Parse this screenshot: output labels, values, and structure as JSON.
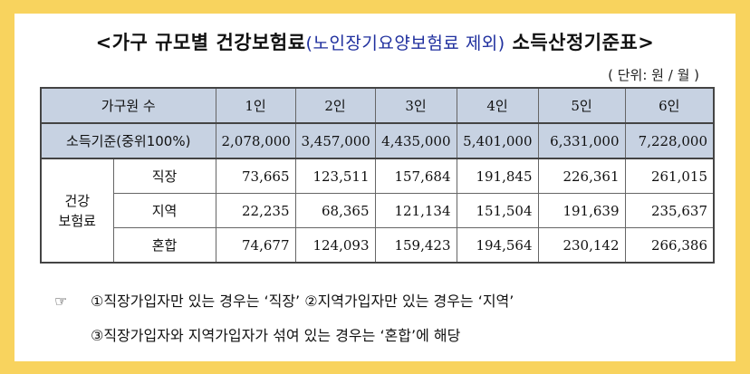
{
  "title": {
    "prefix": "<가구 규모별 건강보험료",
    "highlight": "(노인장기요양보험료 제외)",
    "suffix": " 소득산정기준표>"
  },
  "unit": "( 단위: 원 / 월 )",
  "table": {
    "header": [
      "가구원 수",
      "1인",
      "2인",
      "3인",
      "4인",
      "5인",
      "6인"
    ],
    "standard": {
      "label": "소득기준(중위100%)",
      "values": [
        "2,078,000",
        "3,457,000",
        "4,435,000",
        "5,401,000",
        "6,331,000",
        "7,228,000"
      ]
    },
    "group_label_line1": "건강",
    "group_label_line2": "보험료",
    "rows": [
      {
        "label": "직장",
        "values": [
          "73,665",
          "123,511",
          "157,684",
          "191,845",
          "226,361",
          "261,015"
        ]
      },
      {
        "label": "지역",
        "values": [
          "22,235",
          "68,365",
          "121,134",
          "151,504",
          "191,639",
          "235,637"
        ]
      },
      {
        "label": "혼합",
        "values": [
          "74,677",
          "124,093",
          "159,423",
          "194,564",
          "230,142",
          "266,386"
        ]
      }
    ]
  },
  "notes": {
    "icon": "☞",
    "line1": "①직장가입자만 있는 경우는 ‘직장’ ②지역가입자만 있는 경우는 ‘지역’",
    "line2": "③직장가입자와 지역가입자가 섞여 있는 경우는 ‘혼합’에 해당"
  }
}
